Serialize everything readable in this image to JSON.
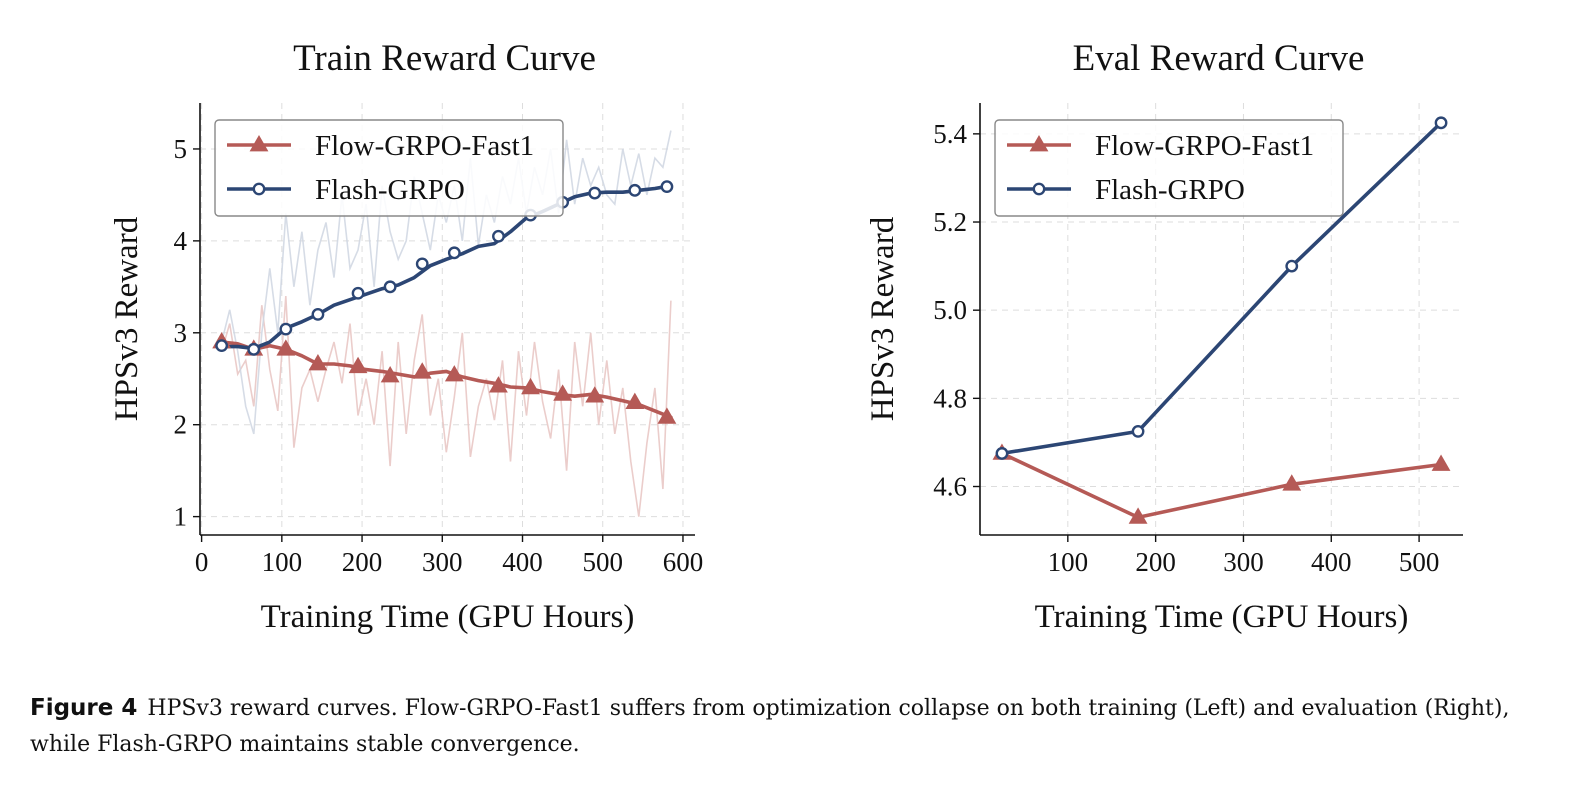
{
  "colors": {
    "flow": "#b55a56",
    "flash": "#2c4674",
    "flow_raw": "#e8c4c2",
    "flash_raw": "#cfd6e2",
    "grid": "#dddddd"
  },
  "caption": {
    "label": "Figure 4",
    "text": "HPSv3 reward curves. Flow-GRPO-Fast1 suffers from optimization collapse on both training (Left) and evaluation (Right), while Flash-GRPO maintains stable convergence."
  },
  "chart_data": [
    {
      "type": "line",
      "title": "Train Reward Curve",
      "xlabel": "Training Time (GPU Hours)",
      "ylabel": "HPSv3 Reward",
      "xlim": [
        -2,
        615
      ],
      "ylim": [
        0.8,
        5.5
      ],
      "xticks": [
        0,
        100,
        200,
        300,
        400,
        500,
        600
      ],
      "yticks": [
        1,
        2,
        3,
        4,
        5
      ],
      "grid": true,
      "legend": "top-left",
      "series": [
        {
          "name": "Flow-GRPO-Fast1",
          "marker": "triangle",
          "x": [
            25,
            45,
            65,
            85,
            105,
            125,
            145,
            165,
            185,
            205,
            225,
            245,
            265,
            285,
            305,
            325,
            345,
            365,
            385,
            405,
            425,
            445,
            465,
            485,
            505,
            525,
            545,
            565,
            585
          ],
          "y": [
            2.9,
            2.88,
            2.82,
            2.86,
            2.82,
            2.75,
            2.66,
            2.66,
            2.64,
            2.6,
            2.58,
            2.55,
            2.52,
            2.56,
            2.58,
            2.52,
            2.48,
            2.45,
            2.41,
            2.4,
            2.36,
            2.33,
            2.31,
            2.33,
            2.3,
            2.26,
            2.22,
            2.15,
            2.08
          ],
          "marker_x": [
            25,
            65,
            105,
            145,
            195,
            235,
            275,
            315,
            370,
            410,
            450,
            490,
            540,
            580
          ],
          "marker_y": [
            2.9,
            2.82,
            2.82,
            2.66,
            2.63,
            2.53,
            2.57,
            2.54,
            2.42,
            2.4,
            2.33,
            2.31,
            2.24,
            2.08
          ],
          "raw_x": [
            25,
            35,
            45,
            55,
            65,
            75,
            85,
            95,
            105,
            115,
            125,
            135,
            145,
            155,
            165,
            175,
            185,
            195,
            205,
            215,
            225,
            235,
            245,
            255,
            265,
            275,
            285,
            295,
            305,
            315,
            325,
            335,
            345,
            355,
            365,
            375,
            385,
            395,
            405,
            415,
            425,
            435,
            445,
            455,
            465,
            475,
            485,
            495,
            505,
            515,
            525,
            535,
            545,
            555,
            565,
            575,
            585
          ],
          "raw_y": [
            2.8,
            3.1,
            2.55,
            2.7,
            2.2,
            3.3,
            2.6,
            2.15,
            3.4,
            1.75,
            2.4,
            2.6,
            2.25,
            2.6,
            2.9,
            2.45,
            3.1,
            2.1,
            2.5,
            2.0,
            2.8,
            1.55,
            2.9,
            1.9,
            2.7,
            3.2,
            2.1,
            2.5,
            1.7,
            2.3,
            3.0,
            1.65,
            2.2,
            2.5,
            2.05,
            2.7,
            1.6,
            2.8,
            2.1,
            2.9,
            2.25,
            1.85,
            2.6,
            1.5,
            2.9,
            2.2,
            3.0,
            2.0,
            2.7,
            1.9,
            2.4,
            1.6,
            1.0,
            1.8,
            2.4,
            1.3,
            3.35
          ]
        },
        {
          "name": "Flash-GRPO",
          "marker": "circle",
          "x": [
            25,
            45,
            65,
            85,
            105,
            125,
            145,
            165,
            185,
            205,
            225,
            245,
            265,
            285,
            305,
            325,
            345,
            365,
            385,
            405,
            425,
            445,
            465,
            485,
            505,
            525,
            545,
            565,
            585
          ],
          "y": [
            2.85,
            2.85,
            2.83,
            2.9,
            3.05,
            3.12,
            3.2,
            3.3,
            3.36,
            3.42,
            3.48,
            3.52,
            3.6,
            3.73,
            3.8,
            3.86,
            3.94,
            3.97,
            4.1,
            4.25,
            4.32,
            4.4,
            4.48,
            4.52,
            4.53,
            4.53,
            4.55,
            4.57,
            4.6
          ],
          "marker_x": [
            25,
            65,
            105,
            145,
            195,
            235,
            275,
            315,
            370,
            410,
            450,
            490,
            540,
            580
          ],
          "marker_y": [
            2.86,
            2.82,
            3.04,
            3.2,
            3.43,
            3.5,
            3.75,
            3.87,
            4.05,
            4.28,
            4.42,
            4.52,
            4.55,
            4.59
          ],
          "raw_x": [
            25,
            35,
            45,
            55,
            65,
            75,
            85,
            95,
            105,
            115,
            125,
            135,
            145,
            155,
            165,
            175,
            185,
            195,
            205,
            215,
            225,
            235,
            245,
            255,
            265,
            275,
            285,
            295,
            305,
            315,
            325,
            335,
            345,
            355,
            365,
            375,
            385,
            395,
            405,
            415,
            425,
            435,
            445,
            455,
            465,
            475,
            485,
            495,
            505,
            515,
            525,
            535,
            545,
            555,
            565,
            575,
            585
          ],
          "raw_y": [
            2.9,
            3.25,
            2.8,
            2.2,
            1.9,
            3.0,
            3.7,
            3.0,
            4.3,
            3.5,
            4.1,
            3.3,
            3.9,
            4.2,
            3.6,
            4.5,
            3.7,
            3.9,
            4.4,
            3.5,
            4.6,
            4.1,
            3.8,
            4.0,
            4.7,
            4.3,
            3.9,
            4.5,
            4.2,
            4.6,
            4.0,
            4.9,
            3.95,
            4.5,
            4.2,
            4.7,
            4.4,
            4.9,
            4.3,
            4.8,
            4.5,
            5.0,
            4.3,
            5.1,
            4.4,
            4.9,
            4.6,
            4.8,
            4.5,
            4.4,
            5.0,
            4.6,
            4.95,
            4.5,
            4.9,
            4.8,
            5.2
          ]
        }
      ]
    },
    {
      "type": "line",
      "title": "Eval Reward Curve",
      "xlabel": "Training Time (GPU Hours)",
      "ylabel": "HPSv3 Reward",
      "xlim": [
        0,
        550
      ],
      "ylim": [
        4.49,
        5.47
      ],
      "xticks": [
        100,
        200,
        300,
        400,
        500
      ],
      "yticks": [
        "4.6",
        "4.8",
        "5.0",
        "5.2",
        "5.4"
      ],
      "grid": true,
      "legend": "top-left",
      "series": [
        {
          "name": "Flow-GRPO-Fast1",
          "marker": "triangle",
          "x": [
            25,
            180,
            355,
            525
          ],
          "y": [
            4.675,
            4.53,
            4.605,
            4.65
          ]
        },
        {
          "name": "Flash-GRPO",
          "marker": "circle",
          "x": [
            25,
            180,
            355,
            525
          ],
          "y": [
            4.675,
            4.725,
            5.1,
            5.425
          ]
        }
      ]
    }
  ]
}
